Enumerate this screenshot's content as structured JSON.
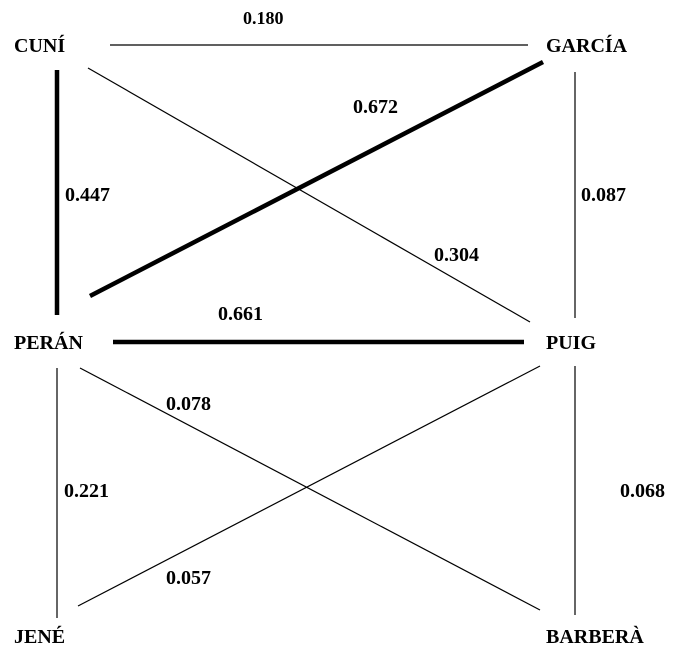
{
  "nodes": {
    "cuni": {
      "label": "CUNÍ"
    },
    "garcia": {
      "label": "GARCÍA"
    },
    "peran": {
      "label": "PERÁN"
    },
    "puig": {
      "label": "PUIG"
    },
    "jene": {
      "label": "JENÉ"
    },
    "barbera": {
      "label": "BARBERÀ"
    }
  },
  "edges": {
    "cuni_garcia": {
      "weight": "0.180",
      "strength": "thin"
    },
    "peran_garcia": {
      "weight": "0.672",
      "strength": "thick"
    },
    "cuni_peran": {
      "weight": "0.447",
      "strength": "thick"
    },
    "garcia_puig": {
      "weight": "0.087",
      "strength": "thin"
    },
    "cuni_puig": {
      "weight": "0.304",
      "strength": "thin"
    },
    "peran_puig": {
      "weight": "0.661",
      "strength": "thick"
    },
    "peran_barbera": {
      "weight": "0.078",
      "strength": "thin"
    },
    "peran_jene": {
      "weight": "0.221",
      "strength": "thin"
    },
    "puig_barbera": {
      "weight": "0.068",
      "strength": "thin"
    },
    "jene_puig": {
      "weight": "0.057",
      "strength": "thin"
    }
  }
}
